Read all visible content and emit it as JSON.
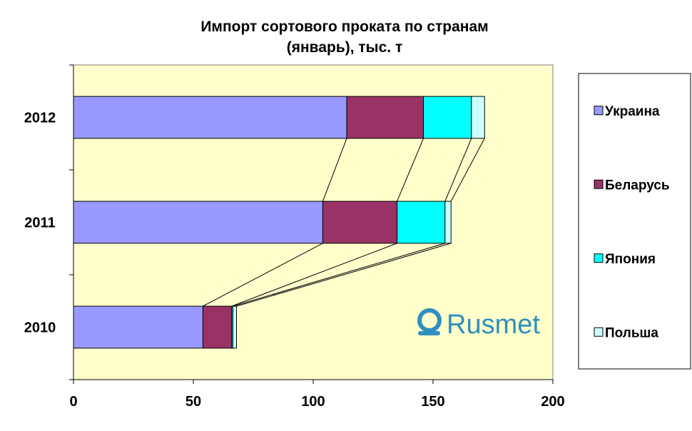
{
  "chart_data": {
    "type": "bar",
    "orientation": "horizontal",
    "stacked": true,
    "title_lines": [
      "Импорт сортового проката по странам",
      "(январь), тыс. т"
    ],
    "categories": [
      "2012",
      "2011",
      "2010"
    ],
    "series": [
      {
        "name": "Украина",
        "color": "#9999ff",
        "values": [
          114,
          104,
          54
        ]
      },
      {
        "name": "Беларусь",
        "color": "#993366",
        "values": [
          32,
          31,
          12
        ]
      },
      {
        "name": "Япония",
        "color": "#00ffff",
        "values": [
          20,
          20,
          0.5
        ]
      },
      {
        "name": "Польша",
        "color": "#ccffff",
        "values": [
          5.5,
          2.5,
          1.5
        ]
      }
    ],
    "xlim": [
      0,
      200
    ],
    "xticks": [
      "0",
      "50",
      "100",
      "150",
      "200"
    ],
    "series_lines": true,
    "plot_background": "#ffffcc",
    "legend_position": "right"
  },
  "logo": {
    "text": "Rusmet",
    "color": "#2f8fbf"
  }
}
